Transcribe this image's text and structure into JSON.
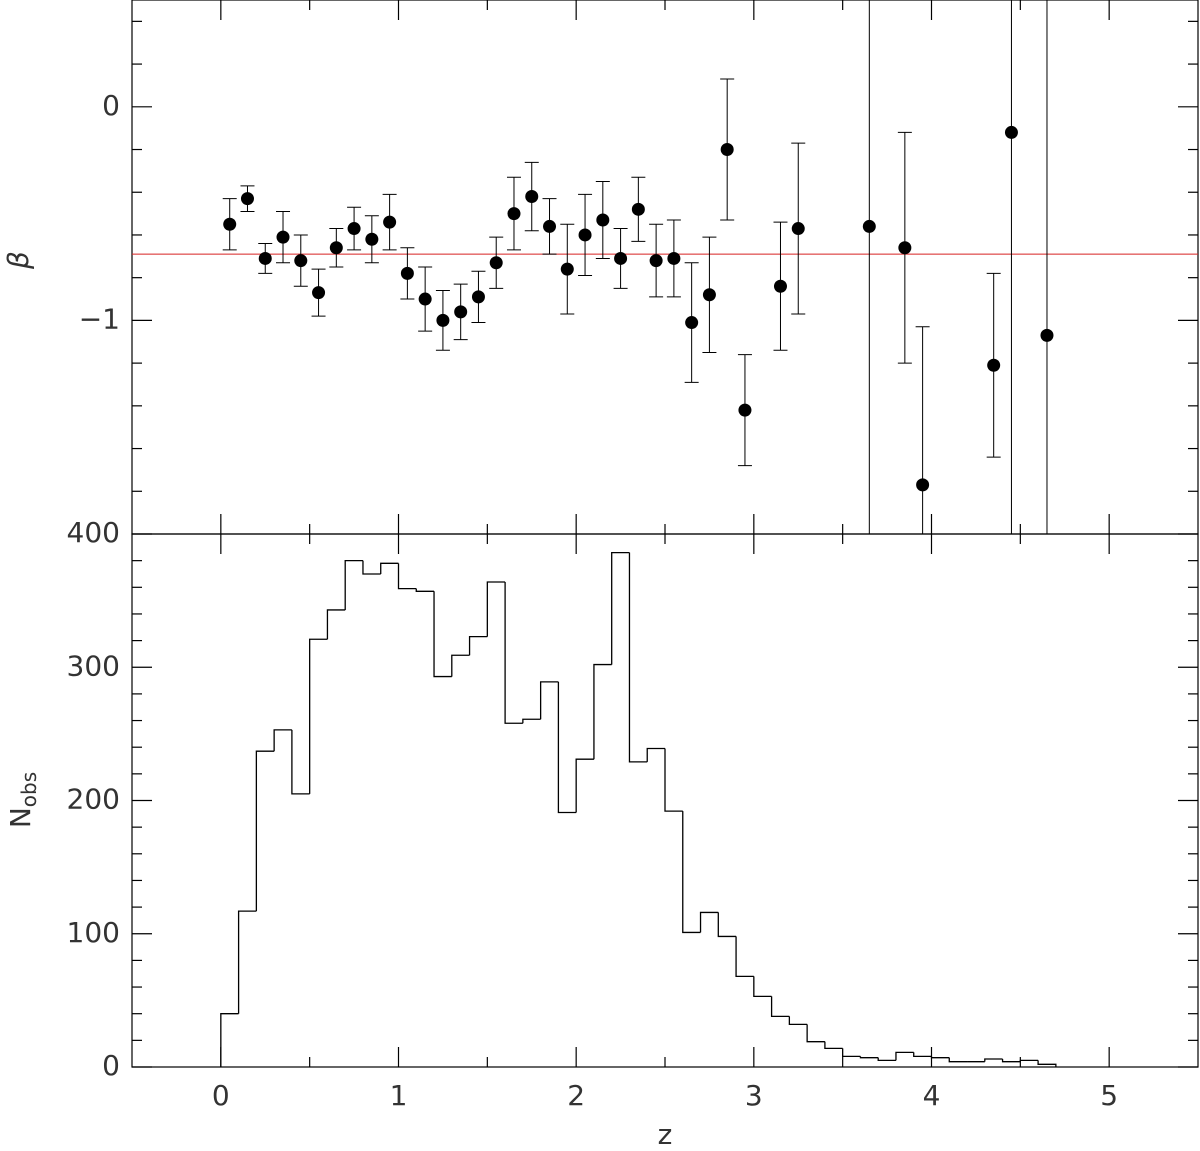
{
  "chart_data": [
    {
      "type": "scatter",
      "ylabel": "β",
      "xlim": [
        -0.5,
        5.5
      ],
      "xticks": [
        0,
        1,
        2,
        3,
        4,
        5
      ],
      "xminor_ticks": [
        0.5,
        1.5,
        2.5,
        3.5,
        4.5
      ],
      "ylim": [
        -2,
        0.5
      ],
      "yticks": [
        0,
        {
          "value": -1,
          "label": "−1"
        }
      ],
      "yminor_ticks": [
        0.4,
        0.2,
        -0.2,
        -0.4,
        -0.6,
        -0.8,
        -1.2,
        -1.4,
        -1.6,
        -1.8
      ],
      "x": [
        0.05,
        0.15,
        0.25,
        0.35,
        0.45,
        0.55,
        0.65,
        0.75,
        0.85,
        0.95,
        1.05,
        1.15,
        1.25,
        1.35,
        1.45,
        1.55,
        1.65,
        1.75,
        1.85,
        1.95,
        2.05,
        2.15,
        2.25,
        2.35,
        2.45,
        2.55,
        2.65,
        2.75,
        2.85,
        2.95,
        3.15,
        3.25,
        3.65,
        3.85,
        3.95,
        4.35,
        4.45,
        4.65
      ],
      "values": [
        -0.55,
        -0.43,
        -0.71,
        -0.61,
        -0.72,
        -0.87,
        -0.66,
        -0.57,
        -0.62,
        -0.54,
        -0.78,
        -0.9,
        -1.0,
        -0.96,
        -0.89,
        -0.73,
        -0.5,
        -0.42,
        -0.56,
        -0.76,
        -0.6,
        -0.53,
        -0.71,
        -0.48,
        -0.72,
        -0.71,
        -1.01,
        -0.88,
        -0.2,
        -1.42,
        -0.84,
        -0.57,
        -0.56,
        -0.66,
        -1.77,
        -1.21,
        -0.12,
        -1.07
      ],
      "errors": [
        0.12,
        0.06,
        0.07,
        0.12,
        0.12,
        0.11,
        0.09,
        0.1,
        0.11,
        0.13,
        0.12,
        0.15,
        0.14,
        0.13,
        0.12,
        0.12,
        0.17,
        0.16,
        0.13,
        0.21,
        0.19,
        0.18,
        0.14,
        0.15,
        0.17,
        0.18,
        0.28,
        0.27,
        0.33,
        0.26,
        0.3,
        0.4,
        2.0,
        0.54,
        0.74,
        0.43,
        2.5,
        2.5
      ],
      "color": "#000000",
      "reference_line": -0.69,
      "reference_color": "#d62020"
    },
    {
      "type": "histogram",
      "ylabel": {
        "text": "N",
        "subscript": "obs"
      },
      "xlabel": "z",
      "xlim": [
        -0.5,
        5.5
      ],
      "xticks": [
        0,
        1,
        2,
        3,
        4,
        5
      ],
      "xminor_ticks": [
        0.5,
        1.5,
        2.5,
        3.5,
        4.5
      ],
      "ylim": [
        0,
        400
      ],
      "yticks": [
        0,
        100,
        200,
        300,
        400
      ],
      "yminor_ticks": [
        20,
        40,
        60,
        80,
        120,
        140,
        160,
        180,
        220,
        240,
        260,
        280,
        320,
        340,
        360,
        380
      ],
      "bins": [
        0,
        0.1,
        0.2,
        0.3,
        0.4,
        0.5,
        0.6,
        0.7,
        0.8,
        0.9,
        1.0,
        1.1,
        1.2,
        1.3,
        1.4,
        1.5,
        1.6,
        1.7,
        1.8,
        1.9,
        2.0,
        2.1,
        2.2,
        2.3,
        2.4,
        2.5,
        2.6,
        2.7,
        2.8,
        2.9,
        3.0,
        3.1,
        3.2,
        3.3,
        3.4,
        3.5,
        3.6,
        3.7,
        3.8,
        3.9,
        4.0,
        4.1,
        4.2,
        4.3,
        4.4,
        4.5,
        4.6,
        4.7
      ],
      "values": [
        40,
        117,
        237,
        253,
        205,
        321,
        343,
        380,
        370,
        378,
        359,
        357,
        293,
        309,
        323,
        364,
        258,
        261,
        289,
        191,
        231,
        302,
        386,
        229,
        239,
        192,
        101,
        116,
        98,
        68,
        53,
        38,
        32,
        19,
        14,
        8,
        7,
        5,
        11,
        8,
        7,
        4,
        4,
        6,
        4,
        5,
        2
      ],
      "color": "#000000"
    }
  ]
}
